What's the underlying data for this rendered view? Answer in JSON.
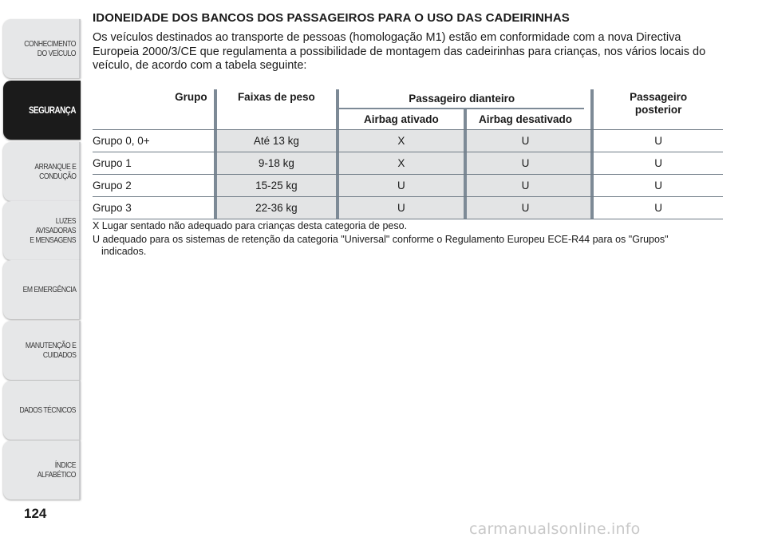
{
  "sidebar": {
    "tabs": [
      {
        "label": "CONHECIMENTO\nDO VEÍCULO",
        "active": false
      },
      {
        "label": "SEGURANÇA",
        "active": true
      },
      {
        "label": "ARRANQUE E\nCONDUÇÃO",
        "active": false
      },
      {
        "label": "LUZES AVISADORAS\nE MENSAGENS",
        "active": false
      },
      {
        "label": "EM EMERGÊNCIA",
        "active": false
      },
      {
        "label": "MANUTENÇÃO E\nCUIDADOS",
        "active": false
      },
      {
        "label": "DADOS TÉCNICOS",
        "active": false
      },
      {
        "label": "ÍNDICE ALFABÉTICO",
        "active": false
      }
    ]
  },
  "page_number": "124",
  "heading": "IDONEIDADE DOS BANCOS DOS PASSAGEIROS PARA O USO DAS CADEIRINHAS",
  "intro": "Os veículos destinados ao transporte de pessoas (homologação M1) estão em conformidade com a nova Directiva Europeia 2000/3/CE que regulamenta a possibilidade de montagem das cadeirinhas para crianças, nos vários locais do veículo, de acordo com a tabela seguinte:",
  "table": {
    "headers": {
      "group": "Grupo",
      "weight": "Faixas de peso",
      "front": "Passageiro dianteiro",
      "airbag_on": "Airbag ativado",
      "airbag_off": "Airbag desativado",
      "rear": "Passageiro\nposterior"
    },
    "rows": [
      {
        "group": "Grupo 0, 0+",
        "weight": "Até 13 kg",
        "airbag_on": "X",
        "airbag_off": "U",
        "rear": "U"
      },
      {
        "group": "Grupo 1",
        "weight": "9-18 kg",
        "airbag_on": "X",
        "airbag_off": "U",
        "rear": "U"
      },
      {
        "group": "Grupo 2",
        "weight": "15-25 kg",
        "airbag_on": "U",
        "airbag_off": "U",
        "rear": "U"
      },
      {
        "group": "Grupo 3",
        "weight": "22-36 kg",
        "airbag_on": "U",
        "airbag_off": "U",
        "rear": "U"
      }
    ]
  },
  "notes": {
    "x": "X Lugar sentado não adequado para crianças desta categoria de peso.",
    "u_line1": "U adequado para os sistemas de retenção da categoria \"Universal\" conforme o Regulamento Europeu ECE-R44 para os \"Grupos\"",
    "u_line2": "indicados."
  },
  "watermark": "carmanualsonline.info"
}
